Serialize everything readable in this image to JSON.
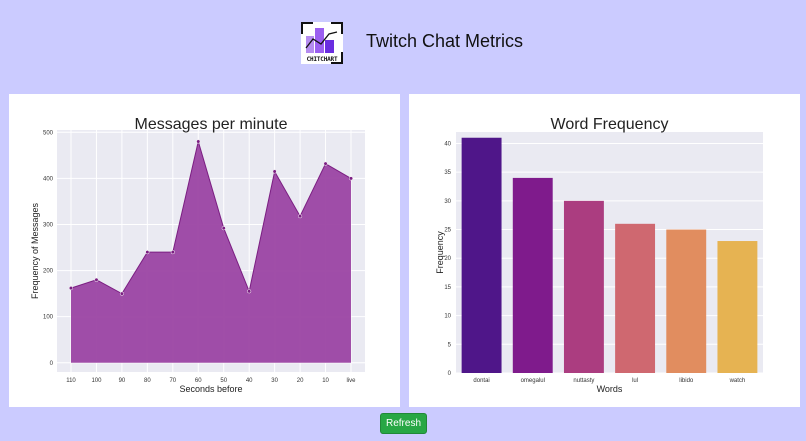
{
  "app": {
    "title": "Twitch Chat Metrics",
    "logo_text": "CHITCHART"
  },
  "colors": {
    "background": "#cbcbff",
    "plot_bg": "#eaeaf2",
    "area_fill": "#9b45a3",
    "area_line": "#7b1e82",
    "button": "#28a745"
  },
  "refresh_label": "Refresh",
  "chart_data": [
    {
      "type": "area",
      "title": "Messages per minute",
      "xlabel": "Seconds before",
      "ylabel": "Frequency of Messages",
      "categories": [
        "110",
        "100",
        "90",
        "80",
        "70",
        "60",
        "50",
        "40",
        "30",
        "20",
        "10",
        "live"
      ],
      "values": [
        162,
        180,
        150,
        240,
        240,
        480,
        292,
        155,
        415,
        318,
        432,
        400
      ],
      "ylim": [
        -20,
        505
      ],
      "yticks": [
        0,
        100,
        200,
        300,
        400,
        500
      ],
      "grid": true
    },
    {
      "type": "bar",
      "title": "Word Frequency",
      "xlabel": "Words",
      "ylabel": "Frequency",
      "categories": [
        "dontai",
        "omegalul",
        "nuttasty",
        "lul",
        "libido",
        "watch"
      ],
      "values": [
        41,
        34,
        30,
        26,
        25,
        23
      ],
      "colors": [
        "#4f1689",
        "#7f1b8c",
        "#ab3d80",
        "#cf6870",
        "#e18d5f",
        "#e6b352"
      ],
      "ylim": [
        0,
        42
      ],
      "yticks": [
        0,
        5,
        10,
        15,
        20,
        25,
        30,
        35,
        40
      ],
      "grid": true
    }
  ]
}
